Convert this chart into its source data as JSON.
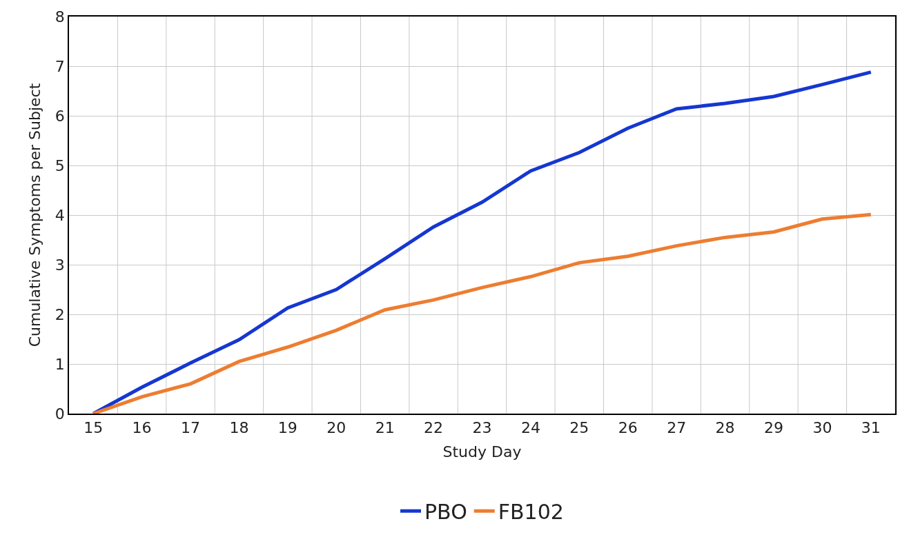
{
  "chart_data": {
    "type": "line",
    "xlabel": "Study Day",
    "ylabel": "Cumulative Symptoms per Subject",
    "categories": [
      "15",
      "16",
      "17",
      "18",
      "19",
      "20",
      "21",
      "22",
      "23",
      "24",
      "25",
      "26",
      "27",
      "28",
      "29",
      "30",
      "31"
    ],
    "series": [
      {
        "name": "PBO",
        "color": "#1537d0",
        "values": [
          0,
          0.53,
          1.02,
          1.49,
          2.13,
          2.5,
          3.12,
          3.76,
          4.26,
          4.89,
          5.26,
          5.75,
          6.14,
          6.25,
          6.39,
          6.63,
          6.88
        ]
      },
      {
        "name": "FB102",
        "color": "#ed7d31",
        "values": [
          0,
          0.34,
          0.6,
          1.05,
          1.34,
          1.68,
          2.09,
          2.29,
          2.54,
          2.76,
          3.04,
          3.17,
          3.38,
          3.55,
          3.66,
          3.92,
          4.01
        ]
      }
    ],
    "ylim": [
      0,
      8
    ],
    "yticks": [
      0,
      1,
      2,
      3,
      4,
      5,
      6,
      7,
      8
    ],
    "grid": true,
    "legend": "bottom",
    "marker": "none",
    "line_style": "solid"
  }
}
